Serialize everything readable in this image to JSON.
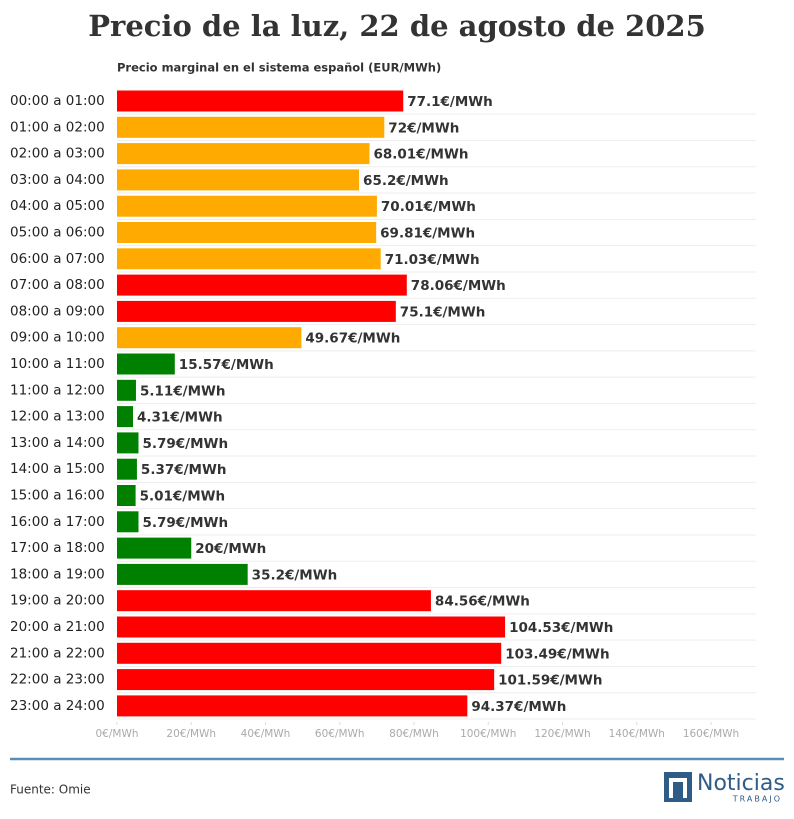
{
  "chart_data": {
    "type": "hbar",
    "title": "Precio de la luz, 22 de agosto de 2025",
    "subtitle": "Precio marginal en el sistema español (EUR/MWh)",
    "categories": [
      "00:00 a 01:00",
      "01:00 a 02:00",
      "02:00 a 03:00",
      "03:00 a 04:00",
      "04:00 a 05:00",
      "05:00 a 06:00",
      "06:00 a 07:00",
      "07:00 a 08:00",
      "08:00 a 09:00",
      "09:00 a 10:00",
      "10:00 a 11:00",
      "11:00 a 12:00",
      "12:00 a 13:00",
      "13:00 a 14:00",
      "14:00 a 15:00",
      "15:00 a 16:00",
      "16:00 a 17:00",
      "17:00 a 18:00",
      "18:00 a 19:00",
      "19:00 a 20:00",
      "20:00 a 21:00",
      "21:00 a 22:00",
      "22:00 a 23:00",
      "23:00 a 24:00"
    ],
    "values": [
      77.1,
      72,
      68.01,
      65.2,
      70.01,
      69.81,
      71.03,
      78.06,
      75.1,
      49.67,
      15.57,
      5.11,
      4.31,
      5.79,
      5.37,
      5.01,
      5.79,
      20,
      35.2,
      84.56,
      104.53,
      103.49,
      101.59,
      94.37
    ],
    "value_labels": [
      "77.1€/MWh",
      "72€/MWh",
      "68.01€/MWh",
      "65.2€/MWh",
      "70.01€/MWh",
      "69.81€/MWh",
      "71.03€/MWh",
      "78.06€/MWh",
      "75.1€/MWh",
      "49.67€/MWh",
      "15.57€/MWh",
      "5.11€/MWh",
      "4.31€/MWh",
      "5.79€/MWh",
      "5.37€/MWh",
      "5.01€/MWh",
      "5.79€/MWh",
      "20€/MWh",
      "35.2€/MWh",
      "84.56€/MWh",
      "104.53€/MWh",
      "103.49€/MWh",
      "101.59€/MWh",
      "94.37€/MWh"
    ],
    "colors": [
      "#ff0000",
      "#ffaa00",
      "#ffaa00",
      "#ffaa00",
      "#ffaa00",
      "#ffaa00",
      "#ffaa00",
      "#ff0000",
      "#ff0000",
      "#ffaa00",
      "#008000",
      "#008000",
      "#008000",
      "#008000",
      "#008000",
      "#008000",
      "#008000",
      "#008000",
      "#008000",
      "#ff0000",
      "#ff0000",
      "#ff0000",
      "#ff0000",
      "#ff0000"
    ],
    "xlim": [
      0,
      160
    ],
    "xticks": [
      {
        "value": 0,
        "label": "0€/MWh"
      },
      {
        "value": 20,
        "label": "20€/MWh"
      },
      {
        "value": 40,
        "label": "40€/MWh"
      },
      {
        "value": 60,
        "label": "60€/MWh"
      },
      {
        "value": 80,
        "label": "80€/MWh"
      },
      {
        "value": 100,
        "label": "100€/MWh"
      },
      {
        "value": 120,
        "label": "120€/MWh"
      },
      {
        "value": 140,
        "label": "140€/MWh"
      },
      {
        "value": 160,
        "label": "160€/MWh"
      }
    ],
    "source": "Fuente: Omie",
    "brand": "Noticias",
    "brand_sub": "TRABAJO"
  }
}
